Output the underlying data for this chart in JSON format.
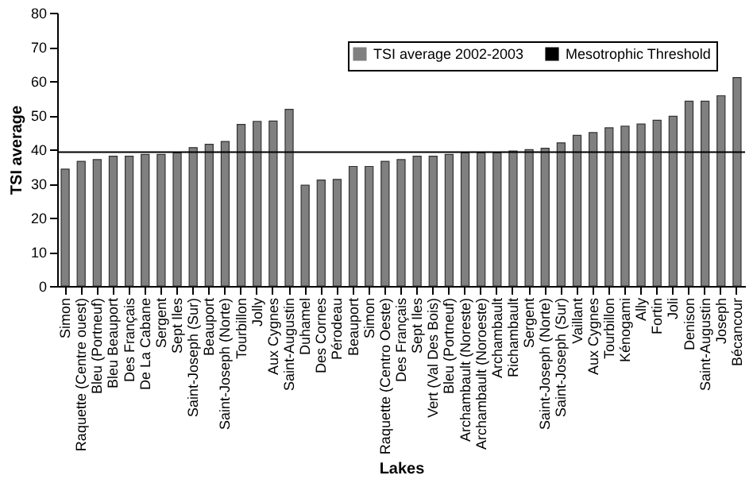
{
  "chart_data": {
    "type": "bar",
    "xlabel": "Lakes",
    "ylabel": "TSI average",
    "categories": [
      "Simon",
      "Raquette (Centre ouest)",
      "Bleu (Portneuf)",
      "Bleu Beauport",
      "Des Français",
      "De La Cabane",
      "Sergent",
      "Sept Iles",
      "Saint-Joseph (Sur)",
      "Beauport",
      "Saint-Joseph (Norte)",
      "Tourbillon",
      "Jolly",
      "Aux Cygnes",
      "Saint-Augustin",
      "Duhamel",
      "Des Cornes",
      "Pérodeau",
      "Beauport",
      "Simon",
      "Raquette (Centro Oeste)",
      "Des Français",
      "Sept Iles",
      "Vert (Val Des Bois)",
      "Bleu (Portneuf)",
      "Archambault (Noreste)",
      "Archambault (Noroeste)",
      "Archambault",
      "Richambault",
      "Sergent",
      "Saint-Joseph (Norte)",
      "Saint-Joseph (Sur)",
      "Vaillant",
      "Aux Cygnes",
      "Tourbillon",
      "Kénogami",
      "Ally",
      "Fortin",
      "Joli",
      "Denison",
      "Saint-Augustin",
      "Joseph",
      "Bécancour"
    ],
    "series": [
      {
        "name": "TSI average 2002-2003",
        "color": "#808080",
        "values": [
          34.2,
          36.5,
          37,
          38,
          38,
          38.5,
          38.5,
          39,
          40.5,
          41.5,
          42.3,
          47.3,
          48.2,
          48.3,
          51.7,
          29.5,
          31,
          31.2,
          35,
          35,
          36.5,
          37,
          38,
          38,
          38.5,
          39,
          39,
          39,
          39.5,
          39.9,
          40.3,
          41.9,
          44.1,
          44.9,
          46.3,
          46.8,
          47.4,
          48.5,
          49.7,
          54.1,
          54.1,
          55.7,
          61
        ]
      }
    ],
    "ylim": [
      0,
      80
    ],
    "yticks": [
      0,
      10,
      20,
      30,
      40,
      50,
      60,
      70,
      80
    ],
    "grid": false,
    "legend": "top right",
    "ref_lines": [
      {
        "axis": "y",
        "value": 39.2,
        "label": "Mesotrophic Threshold",
        "color": "#000000"
      }
    ]
  }
}
